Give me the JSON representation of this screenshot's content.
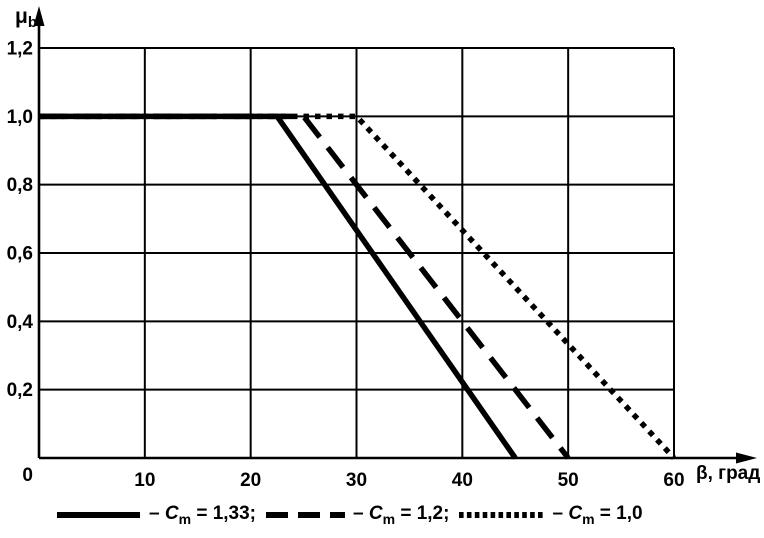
{
  "page": {
    "background": "#ffffff",
    "foreground": "#000000"
  },
  "chart_data": {
    "type": "line",
    "title": "",
    "xlabel": "β, град",
    "ylabel": {
      "symbol": "μ",
      "sub": "b"
    },
    "xlim": [
      0,
      60
    ],
    "ylim": [
      0,
      1.2
    ],
    "grid": true,
    "legend_position": "bottom",
    "origin_label": "0",
    "x_ticks": [
      {
        "value": 10,
        "label": "10"
      },
      {
        "value": 20,
        "label": "20"
      },
      {
        "value": 30,
        "label": "30"
      },
      {
        "value": 40,
        "label": "40"
      },
      {
        "value": 50,
        "label": "50"
      },
      {
        "value": 60,
        "label": "60"
      }
    ],
    "y_ticks": [
      {
        "value": 1.2,
        "label": "1,2"
      },
      {
        "value": 1.0,
        "label": "1,0"
      },
      {
        "value": 0.8,
        "label": "0,8"
      },
      {
        "value": 0.6,
        "label": "0,6"
      },
      {
        "value": 0.4,
        "label": "0,4"
      },
      {
        "value": 0.2,
        "label": "0,2"
      }
    ],
    "series": [
      {
        "name": "Cm = 1,33",
        "style": "solid",
        "points": [
          [
            0,
            1.0
          ],
          [
            22.5,
            1.0
          ],
          [
            45,
            0
          ]
        ]
      },
      {
        "name": "Cm = 1,2",
        "style": "dashed",
        "points": [
          [
            0,
            1.0
          ],
          [
            25,
            1.0
          ],
          [
            50,
            0
          ]
        ]
      },
      {
        "name": "Cm = 1,0",
        "style": "dotted",
        "points": [
          [
            0,
            1.0
          ],
          [
            30,
            1.0
          ],
          [
            60,
            0
          ]
        ]
      }
    ]
  },
  "legend": {
    "items": [
      {
        "style": "solid",
        "dash": "– ",
        "symbol": "C",
        "sub": "m",
        "value": " = 1,33;"
      },
      {
        "style": "dashed",
        "dash": "– ",
        "symbol": "C",
        "sub": "m",
        "value": " = 1,2;"
      },
      {
        "style": "dotted",
        "dash": "– ",
        "symbol": "C",
        "sub": "m",
        "value": " = 1,0"
      }
    ]
  }
}
